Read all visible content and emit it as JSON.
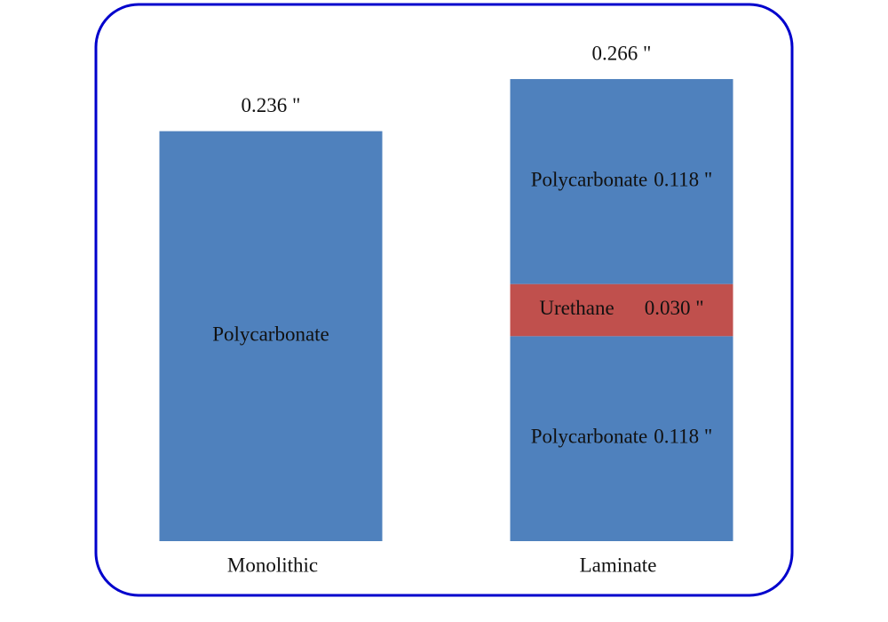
{
  "chart_data": {
    "type": "stacked-bar",
    "categories": [
      "Monolithic",
      "Laminate"
    ],
    "series": [
      {
        "name": "Polycarbonate",
        "color": "#4f81bd",
        "values": [
          0.236,
          0.118
        ],
        "value_labels": [
          null,
          "0.118 \""
        ]
      },
      {
        "name": "Urethane",
        "color": "#c0504d",
        "values": [
          null,
          0.03
        ],
        "value_labels": [
          null,
          "0.030 \""
        ]
      },
      {
        "name": "Polycarbonate",
        "color": "#4f81bd",
        "values": [
          null,
          0.118
        ],
        "value_labels": [
          null,
          "0.118 \""
        ]
      }
    ],
    "totals": [
      0.236,
      0.266
    ],
    "total_labels": [
      "0.236 \"",
      "0.266 \""
    ]
  }
}
